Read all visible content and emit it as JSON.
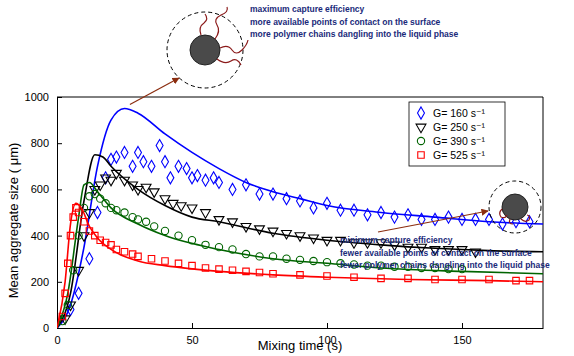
{
  "chart_data": {
    "type": "scatter",
    "x_label": "Mixing time (s)",
    "y_label": "Mean aggregate size ( μm)",
    "xlim": [
      0,
      180
    ],
    "ylim": [
      0,
      1000
    ],
    "xticks": [
      0,
      50,
      100,
      150
    ],
    "yticks": [
      0,
      200,
      400,
      600,
      800,
      1000
    ],
    "grid": false,
    "legend": "upper right",
    "annotations": [
      [
        "maximum capture efficiency",
        "more available points of contact on the surface",
        "more polymer chains dangling into the liquid phase"
      ],
      [
        "minimum capture efficiency",
        "fewer available points of contact on the surface",
        "fewer polymer chains dangling into the liquid phase"
      ]
    ],
    "series": [
      {
        "name": "G= 160 s⁻¹",
        "color": "#0000ff",
        "marker": "diamond",
        "x": [
          5,
          8,
          12,
          15,
          18,
          20,
          22,
          25,
          28,
          30,
          32,
          35,
          38,
          40,
          42,
          45,
          48,
          50,
          52,
          55,
          58,
          60,
          65,
          70,
          75,
          80,
          85,
          90,
          95,
          100,
          105,
          110,
          115,
          120,
          125,
          130,
          135,
          140,
          145,
          150,
          155,
          160,
          165,
          170,
          175
        ],
        "values": [
          80,
          150,
          300,
          500,
          650,
          730,
          740,
          760,
          700,
          760,
          720,
          700,
          790,
          720,
          650,
          700,
          690,
          650,
          660,
          640,
          650,
          630,
          600,
          620,
          580,
          580,
          560,
          550,
          520,
          540,
          510,
          510,
          490,
          500,
          480,
          490,
          470,
          470,
          480,
          470,
          470,
          470,
          450,
          460,
          460
        ],
        "fit": {
          "type": "line",
          "x": [
            0,
            5,
            10,
            15,
            20,
            25,
            30,
            40,
            50,
            60,
            70,
            80,
            90,
            100,
            120,
            140,
            160,
            180
          ],
          "values": [
            0,
            100,
            350,
            700,
            900,
            950,
            930,
            840,
            760,
            690,
            630,
            590,
            560,
            530,
            500,
            480,
            460,
            450
          ]
        }
      },
      {
        "name": "G= 250 s⁻¹",
        "color": "#000000",
        "marker": "triangle-down",
        "x": [
          3,
          5,
          8,
          10,
          12,
          14,
          16,
          18,
          20,
          22,
          25,
          28,
          30,
          33,
          36,
          40,
          43,
          46,
          50,
          55,
          60,
          65,
          70,
          75,
          80,
          85,
          90,
          95,
          100,
          105,
          110,
          115,
          120,
          125,
          130,
          135,
          140,
          145,
          150,
          155
        ],
        "values": [
          40,
          100,
          250,
          400,
          500,
          600,
          620,
          650,
          640,
          670,
          640,
          620,
          600,
          610,
          590,
          560,
          540,
          530,
          520,
          500,
          470,
          460,
          440,
          430,
          420,
          410,
          400,
          390,
          380,
          380,
          370,
          370,
          370,
          360,
          350,
          350,
          340,
          340,
          340,
          330
        ],
        "fit": {
          "type": "line",
          "x": [
            0,
            5,
            10,
            14,
            17,
            20,
            30,
            40,
            50,
            60,
            80,
            100,
            120,
            140,
            160,
            180
          ],
          "values": [
            0,
            150,
            550,
            750,
            740,
            700,
            600,
            530,
            480,
            460,
            410,
            380,
            360,
            345,
            335,
            330
          ]
        }
      },
      {
        "name": "G= 390 s⁻¹",
        "color": "#006400",
        "marker": "circle",
        "x": [
          2,
          4,
          6,
          8,
          10,
          12,
          14,
          16,
          18,
          20,
          22,
          25,
          28,
          30,
          33,
          36,
          40,
          45,
          50,
          55,
          60,
          65,
          70,
          75,
          80,
          85,
          90,
          95,
          100,
          105,
          110,
          115,
          120,
          125,
          130,
          135,
          140,
          145,
          150
        ],
        "values": [
          30,
          100,
          250,
          400,
          520,
          570,
          580,
          560,
          540,
          520,
          510,
          500,
          480,
          470,
          460,
          440,
          420,
          400,
          380,
          360,
          350,
          340,
          320,
          310,
          310,
          300,
          295,
          290,
          285,
          280,
          275,
          270,
          270,
          265,
          265,
          260,
          260,
          255,
          255
        ],
        "fit": {
          "type": "line",
          "x": [
            0,
            4,
            8,
            10,
            12,
            15,
            20,
            30,
            40,
            60,
            80,
            100,
            120,
            150,
            180
          ],
          "values": [
            0,
            150,
            480,
            620,
            630,
            590,
            520,
            450,
            400,
            340,
            300,
            280,
            260,
            245,
            235
          ]
        }
      },
      {
        "name": "G= 525 s⁻¹",
        "color": "#ff0000",
        "marker": "square",
        "x": [
          2,
          3,
          4,
          5,
          6,
          7,
          8,
          10,
          12,
          14,
          16,
          18,
          20,
          22,
          25,
          28,
          30,
          35,
          40,
          45,
          50,
          55,
          60,
          65,
          70,
          75,
          80,
          90,
          100,
          110,
          120,
          130,
          140,
          150,
          160,
          170,
          175
        ],
        "values": [
          50,
          150,
          280,
          400,
          480,
          520,
          500,
          460,
          420,
          400,
          380,
          370,
          360,
          340,
          330,
          320,
          310,
          300,
          290,
          280,
          270,
          260,
          255,
          250,
          245,
          240,
          235,
          230,
          225,
          220,
          215,
          215,
          210,
          210,
          210,
          205,
          205
        ],
        "fit": {
          "type": "line",
          "x": [
            0,
            3,
            5,
            7,
            9,
            12,
            15,
            20,
            30,
            40,
            60,
            80,
            100,
            130,
            160,
            180
          ],
          "values": [
            0,
            200,
            450,
            540,
            520,
            440,
            390,
            340,
            290,
            270,
            245,
            230,
            220,
            210,
            205,
            200
          ]
        }
      }
    ]
  }
}
